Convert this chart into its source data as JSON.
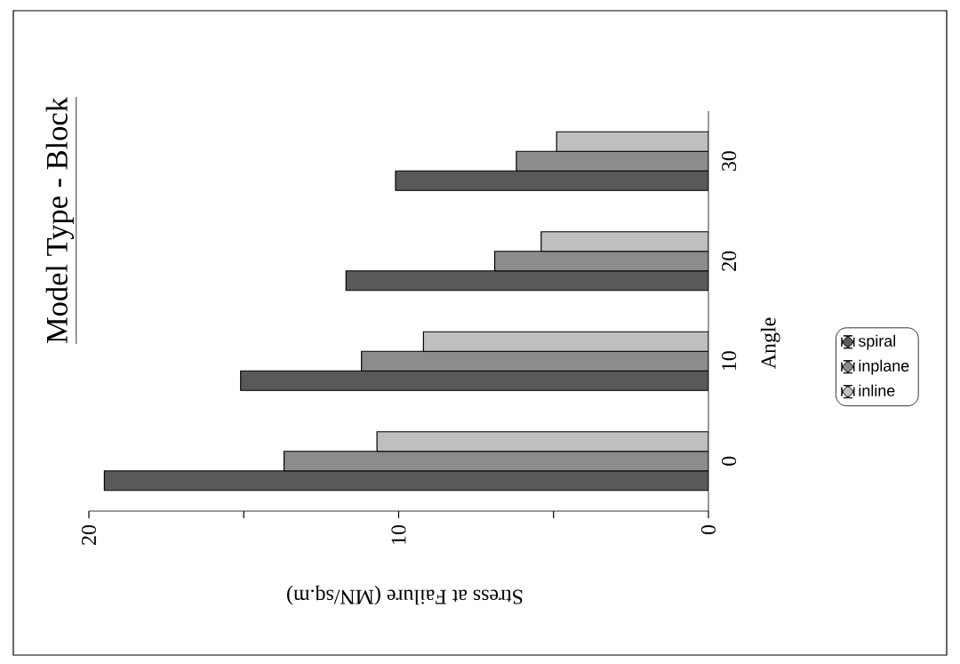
{
  "chart_data": {
    "type": "bar",
    "orientation": "horizontal",
    "title": "Model Type - Block",
    "xlabel": "Stress at Failure (MN/sq.m)",
    "ylabel": "Angle",
    "categories": [
      "30",
      "20",
      "10",
      "0"
    ],
    "series": [
      {
        "name": "spiral",
        "color": "#595959",
        "values": [
          10.1,
          11.7,
          15.1,
          19.5
        ]
      },
      {
        "name": "inplane",
        "color": "#8c8c8c",
        "values": [
          6.2,
          6.9,
          11.2,
          13.7
        ]
      },
      {
        "name": "inline",
        "color": "#bfbfbf",
        "values": [
          4.9,
          5.4,
          9.2,
          10.7
        ]
      }
    ],
    "xlim": [
      20,
      0
    ],
    "xticks": [
      0,
      {
        "value": 5,
        "label": null
      },
      10,
      {
        "value": 15,
        "label": null
      },
      20
    ],
    "grid": false,
    "legend": "right"
  }
}
